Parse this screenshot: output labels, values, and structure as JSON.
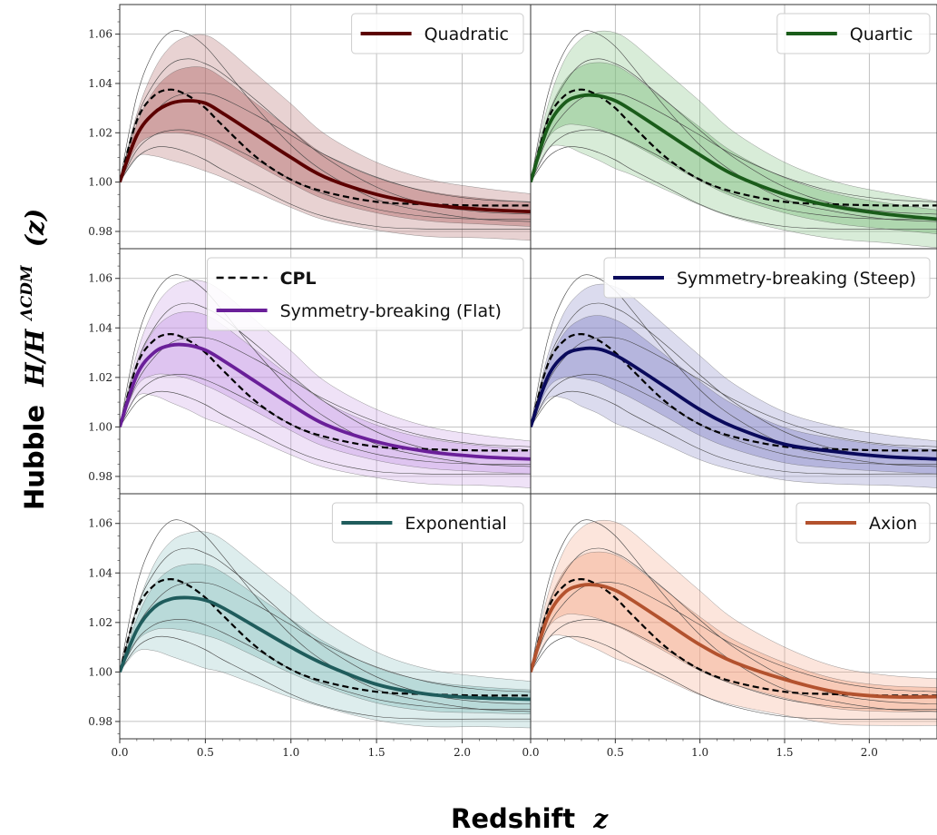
{
  "figure": {
    "xlabel_bold": "Redshift",
    "xlabel_math": "z",
    "ylabel_bold": "Hubble",
    "ylabel_math": "H/H",
    "ylabel_sup": "ΛCDM",
    "ylabel_tail": "(z)"
  },
  "chart_data": [
    {
      "type": "line",
      "panel": "top-left",
      "legend": [
        "Quadratic"
      ],
      "legend_position": "top-right",
      "color": "#5c0000",
      "band_color": "#b36a6a",
      "series": [
        {
          "name": "Quadratic",
          "x": [
            0,
            0.1,
            0.2,
            0.3,
            0.4,
            0.5,
            0.6,
            0.8,
            1.0,
            1.2,
            1.5,
            1.8,
            2.1,
            2.4
          ],
          "y": [
            1.0,
            1.019,
            1.028,
            1.032,
            1.033,
            1.032,
            1.028,
            1.019,
            1.01,
            1.002,
            0.995,
            0.991,
            0.989,
            0.988
          ]
        },
        {
          "name": "CPL",
          "x": [
            0,
            0.1,
            0.2,
            0.3,
            0.4,
            0.5,
            0.6,
            0.8,
            1.0,
            1.2,
            1.5,
            1.8,
            2.1,
            2.4
          ],
          "y": [
            1.0,
            1.025,
            1.035,
            1.0375,
            1.035,
            1.03,
            1.023,
            1.01,
            1.001,
            0.996,
            0.992,
            0.991,
            0.9905,
            0.9905
          ]
        }
      ],
      "xlim": [
        0,
        2.4
      ],
      "ylim": [
        0.973,
        1.072
      ],
      "yticks": [
        "0.98",
        "1.00",
        "1.02",
        "1.04",
        "1.06"
      ]
    },
    {
      "type": "line",
      "panel": "top-right",
      "legend": [
        "Quartic"
      ],
      "legend_position": "top-right",
      "color": "#1a5c1a",
      "band_color": "#7fbf7f",
      "series": [
        {
          "name": "Quartic",
          "x": [
            0,
            0.1,
            0.2,
            0.3,
            0.4,
            0.5,
            0.6,
            0.8,
            1.0,
            1.2,
            1.5,
            1.8,
            2.1,
            2.4
          ],
          "y": [
            1.0,
            1.022,
            1.032,
            1.035,
            1.035,
            1.033,
            1.029,
            1.02,
            1.011,
            1.003,
            0.995,
            0.99,
            0.987,
            0.985
          ]
        },
        {
          "name": "CPL",
          "x": [
            0,
            0.1,
            0.2,
            0.3,
            0.4,
            0.5,
            0.6,
            0.8,
            1.0,
            1.2,
            1.5,
            1.8,
            2.1,
            2.4
          ],
          "y": [
            1.0,
            1.025,
            1.035,
            1.0375,
            1.035,
            1.03,
            1.023,
            1.01,
            1.001,
            0.996,
            0.992,
            0.991,
            0.9905,
            0.9905
          ]
        }
      ],
      "xlim": [
        0,
        2.4
      ],
      "ylim": [
        0.973,
        1.072
      ]
    },
    {
      "type": "line",
      "panel": "middle-left",
      "legend": [
        "CPL",
        "Symmetry-breaking (Flat)"
      ],
      "legend_position": "top-right",
      "color": "#6a1f99",
      "band_color": "#c9a0e6",
      "series": [
        {
          "name": "Symmetry-breaking (Flat)",
          "x": [
            0,
            0.1,
            0.2,
            0.3,
            0.4,
            0.5,
            0.6,
            0.8,
            1.0,
            1.2,
            1.5,
            1.8,
            2.1,
            2.4
          ],
          "y": [
            1.0,
            1.021,
            1.03,
            1.033,
            1.033,
            1.031,
            1.027,
            1.018,
            1.009,
            1.001,
            0.994,
            0.99,
            0.988,
            0.987
          ]
        },
        {
          "name": "CPL",
          "x": [
            0,
            0.1,
            0.2,
            0.3,
            0.4,
            0.5,
            0.6,
            0.8,
            1.0,
            1.2,
            1.5,
            1.8,
            2.1,
            2.4
          ],
          "y": [
            1.0,
            1.025,
            1.035,
            1.0375,
            1.035,
            1.03,
            1.023,
            1.01,
            1.001,
            0.996,
            0.992,
            0.991,
            0.9905,
            0.9905
          ]
        }
      ],
      "xlim": [
        0,
        2.4
      ],
      "ylim": [
        0.973,
        1.072
      ],
      "yticks": [
        "0.98",
        "1.00",
        "1.02",
        "1.04",
        "1.06"
      ]
    },
    {
      "type": "line",
      "panel": "middle-right",
      "legend": [
        "Symmetry-breaking (Steep)"
      ],
      "legend_position": "top-right",
      "color": "#0a0a5c",
      "band_color": "#8888c8",
      "series": [
        {
          "name": "Symmetry-breaking (Steep)",
          "x": [
            0,
            0.1,
            0.2,
            0.3,
            0.4,
            0.5,
            0.6,
            0.8,
            1.0,
            1.2,
            1.5,
            1.8,
            2.1,
            2.4
          ],
          "y": [
            1.0,
            1.02,
            1.029,
            1.0315,
            1.0315,
            1.029,
            1.025,
            1.016,
            1.007,
            1.0,
            0.993,
            0.99,
            0.988,
            0.987
          ]
        },
        {
          "name": "CPL",
          "x": [
            0,
            0.1,
            0.2,
            0.3,
            0.4,
            0.5,
            0.6,
            0.8,
            1.0,
            1.2,
            1.5,
            1.8,
            2.1,
            2.4
          ],
          "y": [
            1.0,
            1.025,
            1.035,
            1.0375,
            1.035,
            1.03,
            1.023,
            1.01,
            1.001,
            0.996,
            0.992,
            0.991,
            0.9905,
            0.9905
          ]
        }
      ],
      "xlim": [
        0,
        2.4
      ],
      "ylim": [
        0.973,
        1.072
      ]
    },
    {
      "type": "line",
      "panel": "bottom-left",
      "legend": [
        "Exponential"
      ],
      "legend_position": "top-right",
      "color": "#1f5c5c",
      "band_color": "#8fc4c2",
      "series": [
        {
          "name": "Exponential",
          "x": [
            0,
            0.1,
            0.2,
            0.3,
            0.4,
            0.5,
            0.6,
            0.8,
            1.0,
            1.2,
            1.5,
            1.8,
            2.1,
            2.4
          ],
          "y": [
            1.0,
            1.017,
            1.026,
            1.0295,
            1.03,
            1.029,
            1.026,
            1.018,
            1.01,
            1.003,
            0.995,
            0.991,
            0.9895,
            0.989
          ]
        },
        {
          "name": "CPL",
          "x": [
            0,
            0.1,
            0.2,
            0.3,
            0.4,
            0.5,
            0.6,
            0.8,
            1.0,
            1.2,
            1.5,
            1.8,
            2.1,
            2.4
          ],
          "y": [
            1.0,
            1.025,
            1.035,
            1.0375,
            1.035,
            1.03,
            1.023,
            1.01,
            1.001,
            0.996,
            0.992,
            0.991,
            0.9905,
            0.9905
          ]
        }
      ],
      "xlim": [
        0,
        2.4
      ],
      "ylim": [
        0.973,
        1.072
      ],
      "xticks": [
        "0.0",
        "0.5",
        "1.0",
        "1.5",
        "2.0"
      ],
      "yticks": [
        "0.98",
        "1.00",
        "1.02",
        "1.04",
        "1.06"
      ]
    },
    {
      "type": "line",
      "panel": "bottom-right",
      "legend": [
        "Axion"
      ],
      "legend_position": "top-right",
      "color": "#b3522e",
      "band_color": "#f5a98a",
      "series": [
        {
          "name": "Axion",
          "x": [
            0,
            0.1,
            0.2,
            0.3,
            0.4,
            0.5,
            0.6,
            0.8,
            1.0,
            1.2,
            1.5,
            1.8,
            2.1,
            2.4
          ],
          "y": [
            1.0,
            1.022,
            1.032,
            1.035,
            1.035,
            1.033,
            1.029,
            1.02,
            1.011,
            1.004,
            0.997,
            0.992,
            0.99,
            0.99
          ]
        },
        {
          "name": "CPL",
          "x": [
            0,
            0.1,
            0.2,
            0.3,
            0.4,
            0.5,
            0.6,
            0.8,
            1.0,
            1.2,
            1.5,
            1.8,
            2.1,
            2.4
          ],
          "y": [
            1.0,
            1.025,
            1.035,
            1.0375,
            1.035,
            1.03,
            1.023,
            1.01,
            1.001,
            0.996,
            0.992,
            0.991,
            0.9905,
            0.9905
          ]
        }
      ],
      "xlim": [
        0,
        2.4
      ],
      "ylim": [
        0.973,
        1.072
      ],
      "xticks": [
        "0.0",
        "0.5",
        "1.0",
        "1.5",
        "2.0"
      ]
    }
  ]
}
